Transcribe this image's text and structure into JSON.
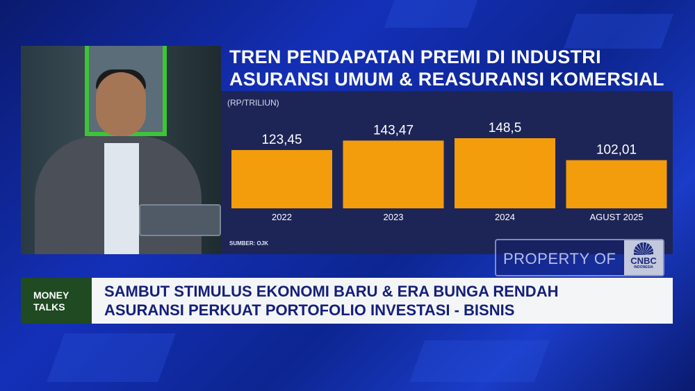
{
  "title": [
    "TREN PENDAPATAN PREMI DI INDUSTRI",
    "ASURANSI UMUM & REASURANSI KOMERSIAL"
  ],
  "unit": "(RP/TRILIUN)",
  "source": "SUMBER: OJK",
  "watermark": {
    "text": "PROPERTY OF",
    "logo": "CNBC",
    "logo_sub": "INDONESIA"
  },
  "lower_third": {
    "show": [
      "MONEY",
      "TALKS"
    ],
    "headline": [
      "SAMBUT STIMULUS EKONOMI BARU & ERA BUNGA RENDAH",
      "ASURANSI PERKUAT PORTOFOLIO INVESTASI - BISNIS"
    ]
  },
  "colors": {
    "bar": "#f39c0c",
    "panel": "#1d2557",
    "show_box": "#1f4a22"
  },
  "chart_data": {
    "type": "bar",
    "title": "TREN PENDAPATAN PREMI DI INDUSTRI ASURANSI UMUM & REASURANSI KOMERSIAL",
    "ylabel": "(RP/TRILIUN)",
    "categories": [
      "2022",
      "2023",
      "2024",
      "AGUST 2025"
    ],
    "values": [
      123.45,
      143.47,
      148.5,
      102.01
    ],
    "value_labels": [
      "123,45",
      "143,47",
      "148,5",
      "102,01"
    ],
    "ylim": [
      0,
      148.5
    ],
    "grid": false,
    "legend": false
  }
}
